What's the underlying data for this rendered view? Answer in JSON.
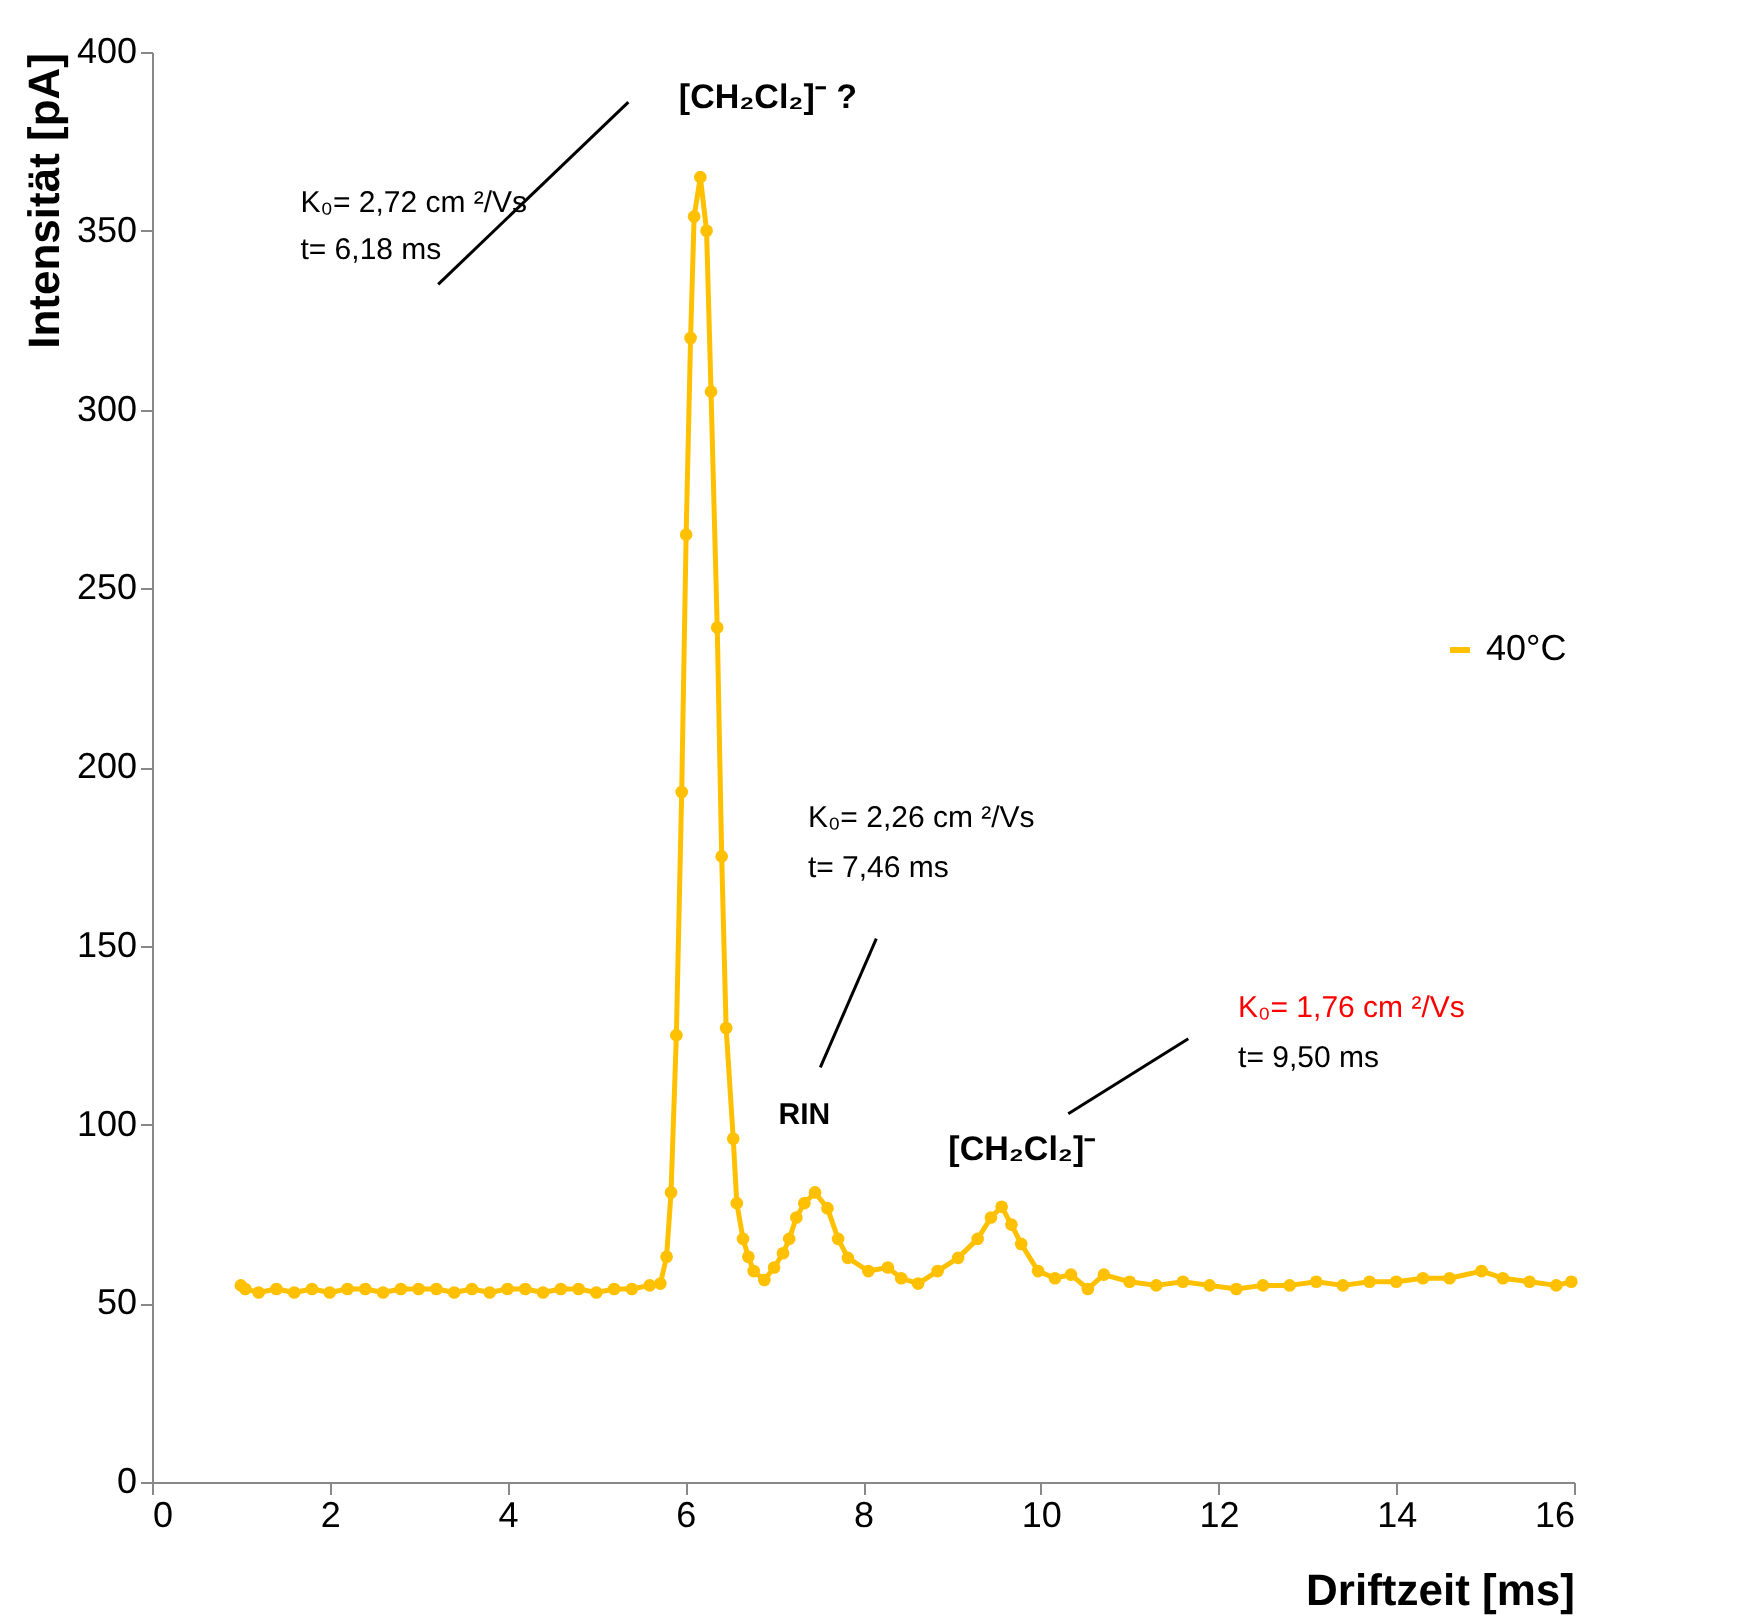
{
  "chart_data": {
    "type": "line",
    "xlabel": "Driftzeit [ms]",
    "ylabel": "Intensität [pA]",
    "x": [
      1.0,
      1.05,
      1.2,
      1.4,
      1.6,
      1.8,
      2.0,
      2.2,
      2.4,
      2.6,
      2.8,
      3.0,
      3.2,
      3.4,
      3.6,
      3.8,
      4.0,
      4.2,
      4.4,
      4.6,
      4.8,
      5.0,
      5.2,
      5.4,
      5.6,
      5.72,
      5.79,
      5.84,
      5.9,
      5.96,
      6.01,
      6.06,
      6.1,
      6.17,
      6.24,
      6.29,
      6.36,
      6.41,
      6.46,
      6.54,
      6.58,
      6.65,
      6.71,
      6.77,
      6.89,
      7.0,
      7.1,
      7.17,
      7.25,
      7.34,
      7.46,
      7.6,
      7.72,
      7.83,
      8.06,
      8.28,
      8.43,
      8.62,
      8.84,
      9.07,
      9.29,
      9.44,
      9.56,
      9.67,
      9.78,
      9.97,
      10.16,
      10.34,
      10.53,
      10.71,
      11.0,
      11.3,
      11.6,
      11.9,
      12.2,
      12.5,
      12.8,
      13.1,
      13.4,
      13.7,
      14.0,
      14.3,
      14.6,
      14.96,
      15.2,
      15.5,
      15.8,
      15.97
    ],
    "series": [
      {
        "name": "40°C",
        "color": "#ffc000",
        "values": [
          55,
          54,
          53,
          54,
          53,
          54,
          53,
          54,
          54,
          53,
          54,
          54,
          54,
          53,
          54,
          53,
          54,
          54,
          53,
          54,
          54,
          53,
          54,
          54,
          55,
          55.5,
          63,
          81,
          125,
          193,
          265,
          320,
          354,
          365,
          350,
          305,
          239,
          175,
          127,
          96,
          78,
          68,
          63,
          59,
          56.5,
          60,
          64,
          68,
          74,
          78,
          81,
          76.6,
          68,
          62.7,
          59,
          60,
          57,
          55.5,
          59,
          62.7,
          68,
          74,
          77,
          72,
          66.6,
          59,
          57,
          58,
          54,
          58,
          56,
          55,
          56,
          55,
          54,
          55,
          55,
          56,
          55,
          56,
          56,
          57,
          57,
          59,
          57,
          56,
          55,
          56
        ]
      }
    ],
    "xlim": [
      0,
      16
    ],
    "xticks": [
      0,
      2,
      4,
      6,
      8,
      10,
      12,
      14,
      16
    ],
    "ylim": [
      0,
      400
    ],
    "yticks": [
      0,
      50,
      100,
      150,
      200,
      250,
      300,
      350,
      400
    ],
    "grid": false,
    "legend": "right",
    "marker": "circle",
    "line_style": "solid",
    "annotations": [
      "[CH₂Cl₂]⁻  ?",
      "K₀= 2,72 cm ²/Vs",
      "t= 6,18 ms",
      "K₀= 2,26 cm ²/Vs",
      "t= 7,46 ms",
      "RIN",
      "[CH₂Cl₂]⁻",
      "K₀= 1,76 cm ²/Vs",
      "t= 9,50 ms"
    ]
  }
}
